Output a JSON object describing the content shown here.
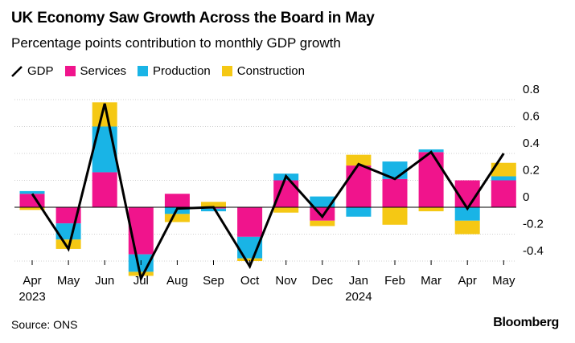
{
  "title": "UK Economy Saw Growth Across the Board in May",
  "subtitle": "Percentage points contribution to monthly GDP growth",
  "legend": [
    {
      "label": "GDP",
      "kind": "line",
      "color": "#000000"
    },
    {
      "label": "Services",
      "kind": "box",
      "color": "#f0148c"
    },
    {
      "label": "Production",
      "kind": "box",
      "color": "#19b4e6"
    },
    {
      "label": "Construction",
      "kind": "box",
      "color": "#f5c814"
    }
  ],
  "source": "Source: ONS",
  "brand": "Bloomberg",
  "chart_data": {
    "type": "bar",
    "stacked": true,
    "categories": [
      "Apr",
      "May",
      "Jun",
      "Jul",
      "Aug",
      "Sep",
      "Oct",
      "Nov",
      "Dec",
      "Jan",
      "Feb",
      "Mar",
      "Apr",
      "May"
    ],
    "year_labels": [
      {
        "index": 0,
        "label": "2023"
      },
      {
        "index": 9,
        "label": "2024"
      }
    ],
    "series": [
      {
        "name": "Services",
        "color": "#f0148c",
        "values": [
          0.1,
          -0.12,
          0.26,
          -0.35,
          0.1,
          -0.01,
          -0.22,
          0.2,
          -0.1,
          0.31,
          0.21,
          0.41,
          0.2,
          0.2
        ]
      },
      {
        "name": "Production",
        "color": "#19b4e6",
        "values": [
          0.02,
          -0.12,
          0.34,
          -0.13,
          -0.05,
          -0.02,
          -0.16,
          0.05,
          0.08,
          -0.07,
          0.13,
          0.02,
          -0.1,
          0.03
        ]
      },
      {
        "name": "Construction",
        "color": "#f5c814",
        "values": [
          -0.02,
          -0.07,
          0.18,
          -0.03,
          -0.06,
          0.04,
          -0.02,
          -0.04,
          -0.04,
          0.08,
          -0.13,
          -0.03,
          -0.1,
          0.1
        ]
      }
    ],
    "line": {
      "name": "GDP",
      "color": "#000000",
      "values": [
        0.1,
        -0.31,
        0.77,
        -0.53,
        -0.01,
        0.0,
        -0.44,
        0.23,
        -0.07,
        0.32,
        0.21,
        0.41,
        -0.01,
        0.4
      ]
    },
    "y_ticks": [
      "0.8",
      "0.6",
      "0.4",
      "0.2",
      "0",
      "-0.2",
      "-0.4"
    ],
    "y_tick_values": [
      0.8,
      0.6,
      0.4,
      0.2,
      0,
      -0.2,
      -0.4
    ],
    "ylim": [
      -0.52,
      0.8
    ],
    "grid": true,
    "legend_position": "top-left",
    "xlabel": "",
    "ylabel": ""
  }
}
